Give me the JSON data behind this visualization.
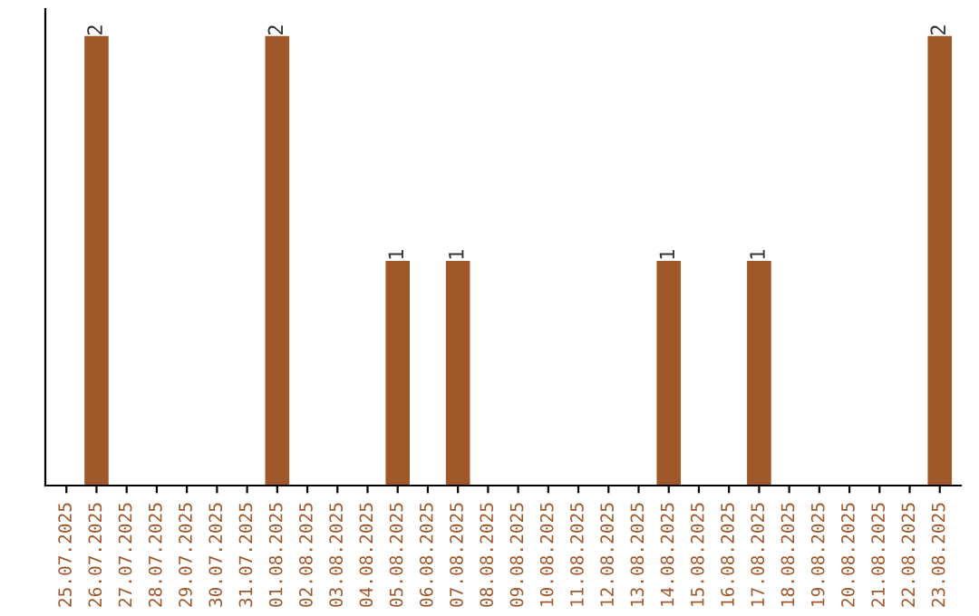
{
  "chart_data": {
    "type": "bar",
    "categories": [
      "25.07.2025",
      "26.07.2025",
      "27.07.2025",
      "28.07.2025",
      "29.07.2025",
      "30.07.2025",
      "31.07.2025",
      "01.08.2025",
      "02.08.2025",
      "03.08.2025",
      "04.08.2025",
      "05.08.2025",
      "06.08.2025",
      "07.08.2025",
      "08.08.2025",
      "09.08.2025",
      "10.08.2025",
      "11.08.2025",
      "12.08.2025",
      "13.08.2025",
      "14.08.2025",
      "15.08.2025",
      "16.08.2025",
      "17.08.2025",
      "18.08.2025",
      "19.08.2025",
      "20.08.2025",
      "21.08.2025",
      "22.08.2025",
      "23.08.2025"
    ],
    "values": [
      0,
      2,
      0,
      0,
      0,
      0,
      0,
      2,
      0,
      0,
      0,
      1,
      0,
      1,
      0,
      0,
      0,
      0,
      0,
      0,
      1,
      0,
      0,
      1,
      0,
      0,
      0,
      0,
      0,
      2
    ],
    "value_labels": [
      null,
      "2",
      null,
      null,
      null,
      null,
      null,
      "2",
      null,
      null,
      null,
      "1",
      null,
      "1",
      null,
      null,
      null,
      null,
      null,
      null,
      "1",
      null,
      null,
      "1",
      null,
      null,
      null,
      null,
      null,
      "2"
    ],
    "color": "#a0572a",
    "tick_labels": "x",
    "grid": false,
    "legend": false
  }
}
